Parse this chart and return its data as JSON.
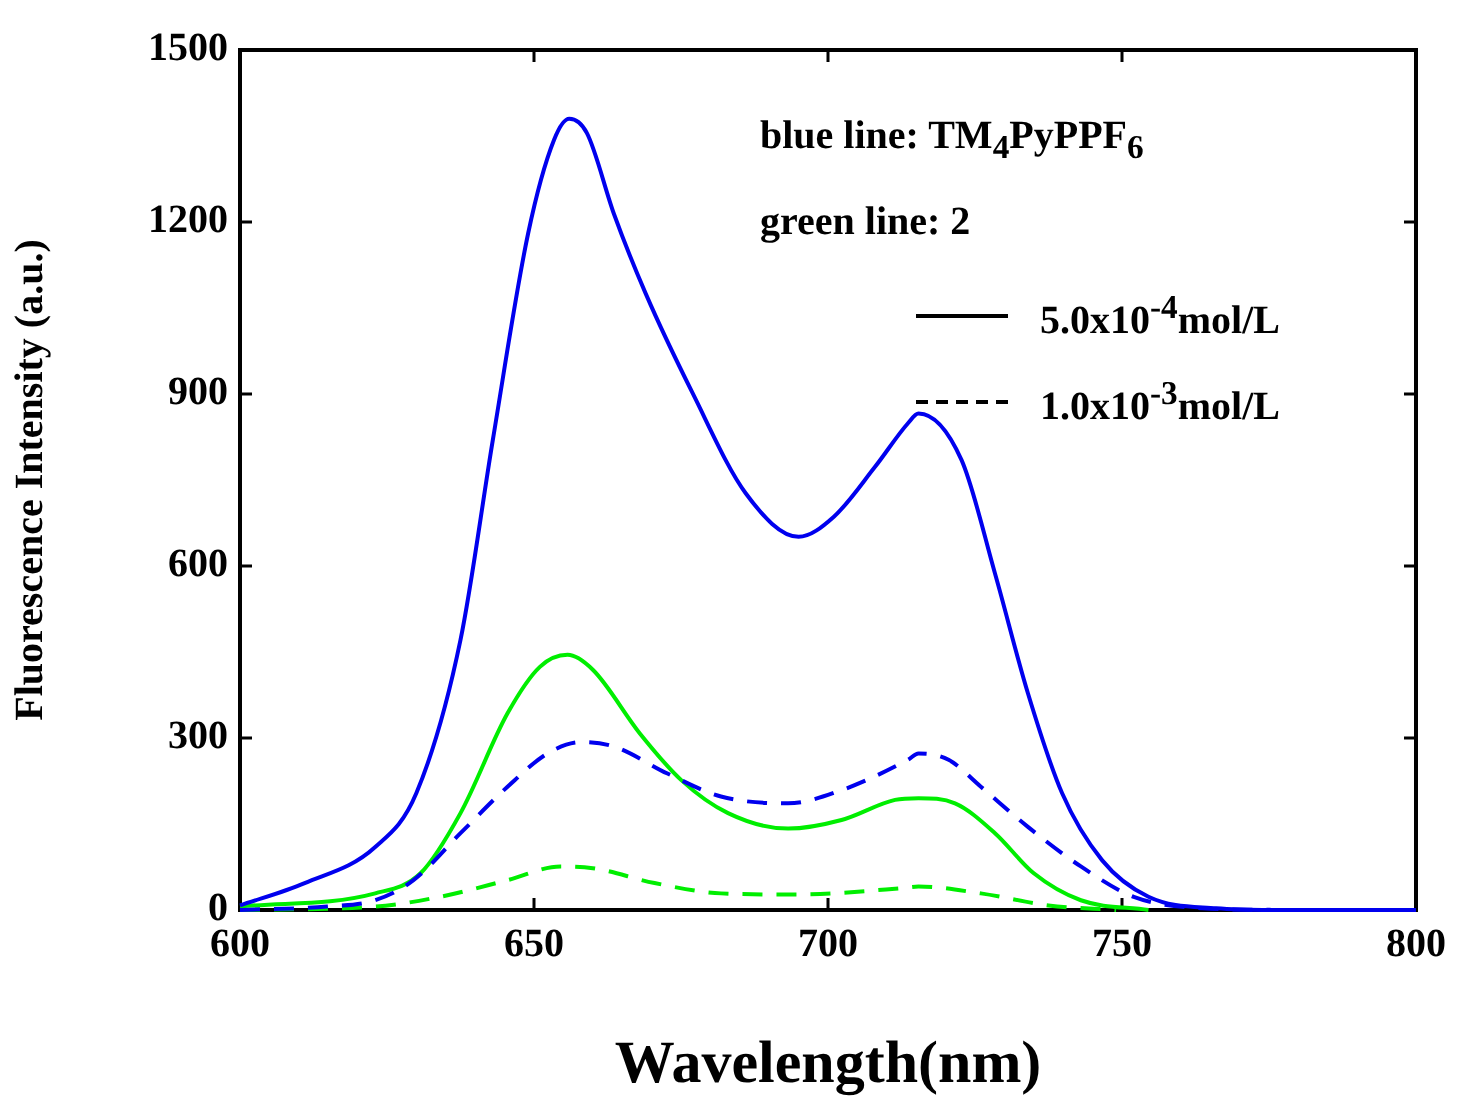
{
  "chart_data": {
    "type": "line",
    "xlabel": "Wavelength(nm)",
    "ylabel": "Fluorescence Intensity (a.u.)",
    "xlim": [
      600,
      800
    ],
    "xticks": [
      600,
      650,
      700,
      750,
      800
    ],
    "ylim": [
      0,
      1500
    ],
    "yticks": [
      0,
      300,
      600,
      900,
      1200,
      1500
    ],
    "grid": false,
    "legend": false,
    "marker": "none",
    "annotations": [
      "blue line: TM$_{4}$PyPPF$_{6}$",
      "green line: 2",
      "5.0x10$^{-4}$mol/L",
      "1.0x10$^{-3}$mol/L"
    ],
    "series": [
      {
        "color": "#0000ee",
        "line_style": "solid",
        "x": [
          600,
          611,
          623,
          630,
          637.5,
          643,
          649,
          653.4,
          656,
          659,
          663.6,
          669,
          677,
          686,
          695,
          701,
          708,
          713.6,
          715.4,
          722.7,
          728.4,
          734,
          739.8,
          746.6,
          754.5,
          766,
          777,
          800
        ],
        "values": [
          8,
          47,
          110,
          204,
          471,
          820,
          1180,
          1343,
          1380,
          1355,
          1214,
          1075,
          901,
          727,
          651,
          686,
          773,
          849,
          866,
          785,
          587,
          378,
          204,
          87,
          23,
          3,
          0,
          0
        ]
      },
      {
        "color": "#0000ee",
        "line_style": "dashed",
        "x": [
          600,
          614.8,
          623,
          629.5,
          637.5,
          645.5,
          652.3,
          658,
          663.6,
          672.7,
          681.8,
          693.2,
          702.3,
          713.6,
          715.4,
          720.5,
          726,
          734,
          743,
          752,
          763.6,
          777
        ],
        "values": [
          0,
          6,
          17,
          52,
          134,
          215,
          273,
          293,
          285,
          238,
          198,
          186,
          209,
          262,
          273,
          262,
          215,
          145,
          76,
          23,
          3,
          0
        ]
      },
      {
        "color": "#00ee00",
        "line_style": "solid",
        "x": [
          600,
          623,
          630.7,
          637.5,
          645.5,
          651,
          655.7,
          660,
          668,
          675,
          683,
          693.2,
          702.3,
          711.4,
          715.4,
          721.6,
          728.4,
          735,
          743,
          754.5
        ],
        "values": [
          6,
          29,
          64,
          169,
          343,
          424,
          445,
          419,
          308,
          227,
          169,
          142,
          157,
          192,
          195,
          186,
          134,
          64,
          17,
          0
        ]
      },
      {
        "color": "#00ee00",
        "line_style": "dashed",
        "x": [
          600,
          623,
          634,
          645.5,
          654.5,
          660,
          670.5,
          681.8,
          694.3,
          712.5,
          715.4,
          726,
          737.5,
          749
        ],
        "values": [
          0,
          6,
          23,
          52,
          76,
          73,
          47,
          29,
          27,
          38,
          41,
          29,
          8,
          0
        ]
      }
    ]
  }
}
